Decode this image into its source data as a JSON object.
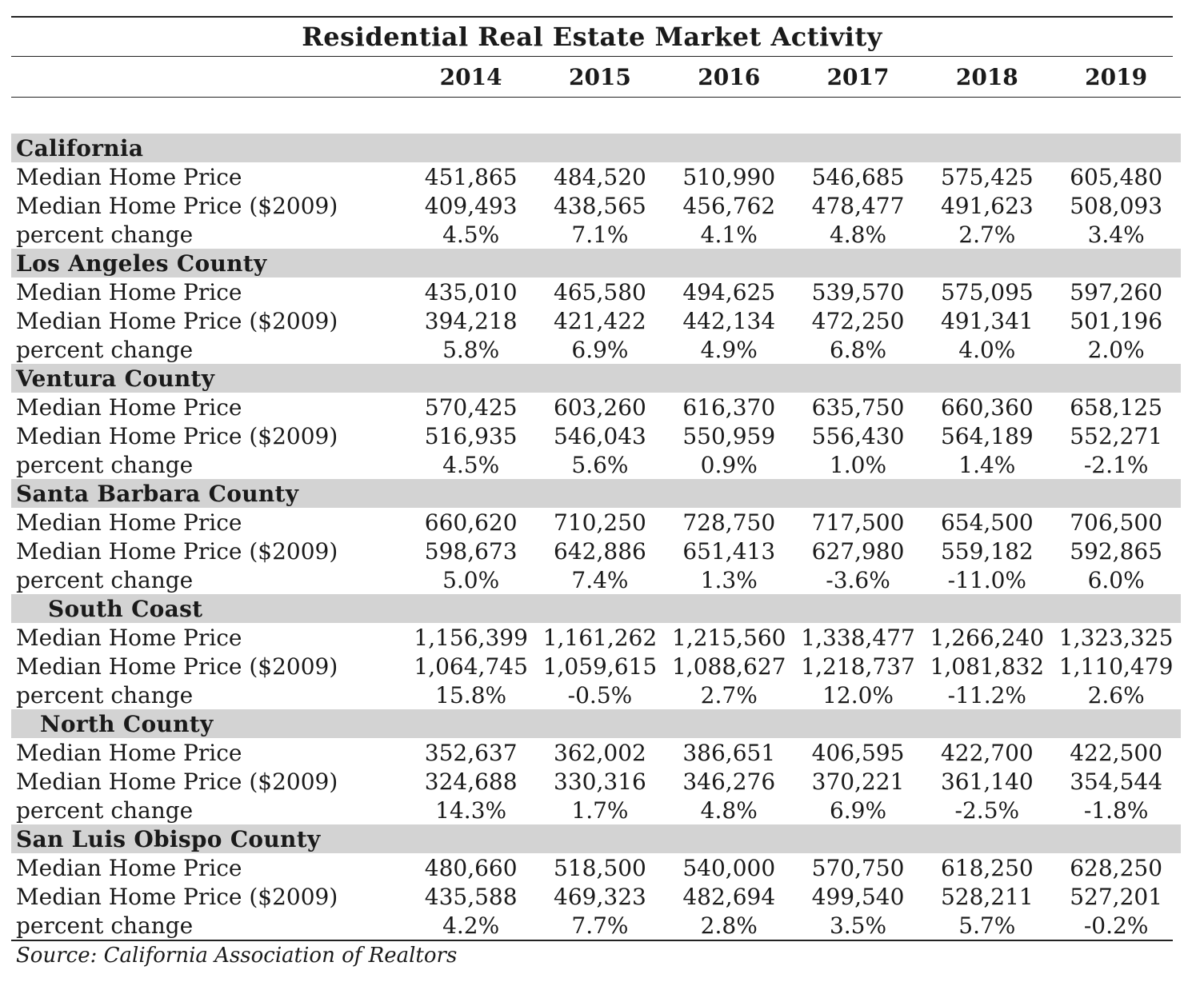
{
  "title": "Residential Real Estate Market Activity",
  "years": [
    "2014",
    "2015",
    "2016",
    "2017",
    "2018",
    "2019"
  ],
  "source": "Source: California Association of Realtors",
  "sections": [
    {
      "name": "California",
      "rows": [
        {
          "label": "Median Home Price",
          "values": [
            "451,865",
            "484,520",
            "510,990",
            "546,685",
            "575,425",
            "605,480"
          ]
        },
        {
          "label": "Median Home Price ($2009)",
          "values": [
            "409,493",
            "438,565",
            "456,762",
            "478,477",
            "491,623",
            "508,093"
          ]
        },
        {
          "label": "percent change",
          "values": [
            "4.5%",
            "7.1%",
            "4.1%",
            "4.8%",
            "2.7%",
            "3.4%"
          ]
        }
      ]
    },
    {
      "name": "Los Angeles County",
      "rows": [
        {
          "label": "Median Home Price",
          "values": [
            "435,010",
            "465,580",
            "494,625",
            "539,570",
            "575,095",
            "597,260"
          ]
        },
        {
          "label": "Median Home Price ($2009)",
          "values": [
            "394,218",
            "421,422",
            "442,134",
            "472,250",
            "491,341",
            "501,196"
          ]
        },
        {
          "label": "percent change",
          "values": [
            "5.8%",
            "6.9%",
            "4.9%",
            "6.8%",
            "4.0%",
            "2.0%"
          ]
        }
      ]
    },
    {
      "name": "Ventura County",
      "rows": [
        {
          "label": "Median Home Price",
          "values": [
            "570,425",
            "603,260",
            "616,370",
            "635,750",
            "660,360",
            "658,125"
          ]
        },
        {
          "label": "Median Home Price ($2009)",
          "values": [
            "516,935",
            "546,043",
            "550,959",
            "556,430",
            "564,189",
            "552,271"
          ]
        },
        {
          "label": "percent change",
          "values": [
            "4.5%",
            "5.6%",
            "0.9%",
            "1.0%",
            "1.4%",
            "-2.1%"
          ]
        }
      ]
    },
    {
      "name": "Santa Barbara County",
      "rows": [
        {
          "label": "Median Home Price",
          "values": [
            "660,620",
            "710,250",
            "728,750",
            "717,500",
            "654,500",
            "706,500"
          ]
        },
        {
          "label": "Median Home Price ($2009)",
          "values": [
            "598,673",
            "642,886",
            "651,413",
            "627,980",
            "559,182",
            "592,865"
          ]
        },
        {
          "label": "percent change",
          "values": [
            "5.0%",
            "7.4%",
            "1.3%",
            "-3.6%",
            "-11.0%",
            "6.0%"
          ]
        }
      ]
    },
    {
      "name": "South Coast",
      "rows": [
        {
          "label": "Median Home Price",
          "values": [
            "1,156,399",
            "1,161,262",
            "1,215,560",
            "1,338,477",
            "1,266,240",
            "1,323,325"
          ]
        },
        {
          "label": "Median Home Price ($2009)",
          "values": [
            "1,064,745",
            "1,059,615",
            "1,088,627",
            "1,218,737",
            "1,081,832",
            "1,110,479"
          ]
        },
        {
          "label": "percent change",
          "values": [
            "15.8%",
            "-0.5%",
            "2.7%",
            "12.0%",
            "-11.2%",
            "2.6%"
          ]
        }
      ]
    },
    {
      "name": "North County",
      "rows": [
        {
          "label": "Median Home Price",
          "values": [
            "352,637",
            "362,002",
            "386,651",
            "406,595",
            "422,700",
            "422,500"
          ]
        },
        {
          "label": "Median Home Price ($2009)",
          "values": [
            "324,688",
            "330,316",
            "346,276",
            "370,221",
            "361,140",
            "354,544"
          ]
        },
        {
          "label": "percent change",
          "values": [
            "14.3%",
            "1.7%",
            "4.8%",
            "6.9%",
            "-2.5%",
            "-1.8%"
          ]
        }
      ]
    },
    {
      "name": "San Luis Obispo County",
      "rows": [
        {
          "label": "Median Home Price",
          "values": [
            "480,660",
            "518,500",
            "540,000",
            "570,750",
            "618,250",
            "628,250"
          ]
        },
        {
          "label": "Median Home Price ($2009)",
          "values": [
            "435,588",
            "469,323",
            "482,694",
            "499,540",
            "528,211",
            "527,201"
          ]
        },
        {
          "label": "percent change",
          "values": [
            "4.2%",
            "7.7%",
            "2.8%",
            "3.5%",
            "5.7%",
            "-0.2%"
          ]
        }
      ]
    }
  ]
}
